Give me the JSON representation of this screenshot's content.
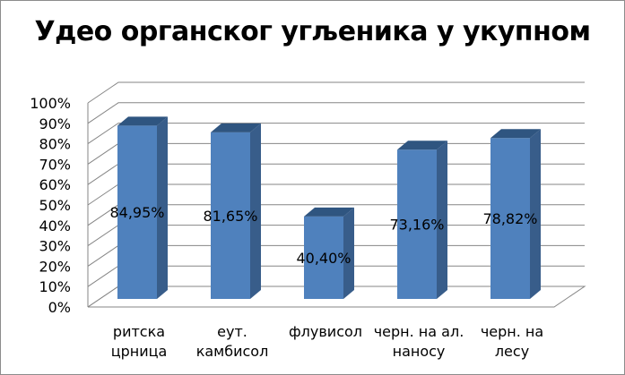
{
  "chart_data": {
    "type": "bar",
    "title": "Удео органског угљеника у укупном",
    "categories": [
      [
        "ритска",
        "црница"
      ],
      [
        "еут.",
        "камбисол"
      ],
      [
        "флувисол"
      ],
      [
        "черн. на ал.",
        "наносу"
      ],
      [
        "черн. на",
        "лесу"
      ]
    ],
    "values": [
      84.95,
      81.65,
      40.4,
      73.16,
      78.82
    ],
    "data_labels": [
      "84,95%",
      "81,65%",
      "40,40%",
      "73,16%",
      "78,82%"
    ],
    "y_ticks": [
      "0%",
      "10%",
      "20%",
      "30%",
      "40%",
      "50%",
      "60%",
      "70%",
      "80%",
      "90%",
      "100%"
    ],
    "ylim": [
      0,
      100
    ],
    "grid": true,
    "legend": "none",
    "style": "3d-column",
    "colors": {
      "bar_front": "#4f81bd",
      "bar_side": "#385d8a",
      "bar_top": "#2f5580",
      "gridline": "#868686",
      "frame": "#8c8c8c"
    }
  }
}
